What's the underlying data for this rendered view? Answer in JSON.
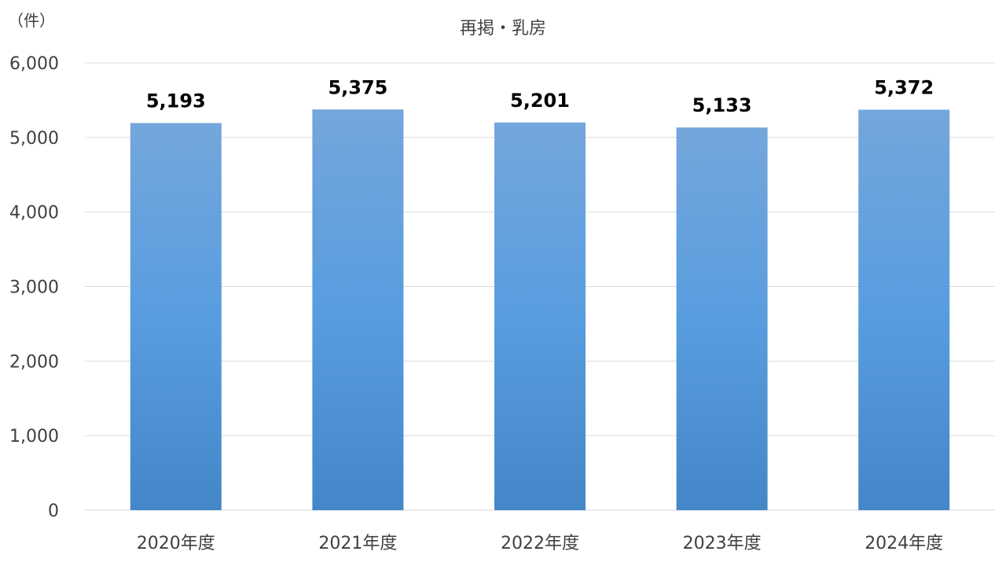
{
  "unit_label": "（件）",
  "chart_data": {
    "type": "bar",
    "title": "再掲・乳房",
    "xlabel": "",
    "ylabel": "",
    "categories": [
      "2020年度",
      "2021年度",
      "2022年度",
      "2023年度",
      "2024年度"
    ],
    "values": [
      5193,
      5375,
      5201,
      5133,
      5372
    ],
    "value_labels": [
      "5,193",
      "5,375",
      "5,201",
      "5,133",
      "5,372"
    ],
    "ylim": [
      0,
      6000
    ],
    "yticks": [
      0,
      1000,
      2000,
      3000,
      4000,
      5000,
      6000
    ],
    "ytick_labels": [
      "0",
      "1,000",
      "2,000",
      "3,000",
      "4,000",
      "5,000",
      "6,000"
    ],
    "grid": true,
    "legend": "none",
    "colors": {
      "bar_top": "#74a6dc",
      "bar_mid": "#589ddf",
      "bar_bottom": "#4487c8",
      "grid": "#d9d9d9",
      "axis": "#d9d9d9"
    }
  }
}
